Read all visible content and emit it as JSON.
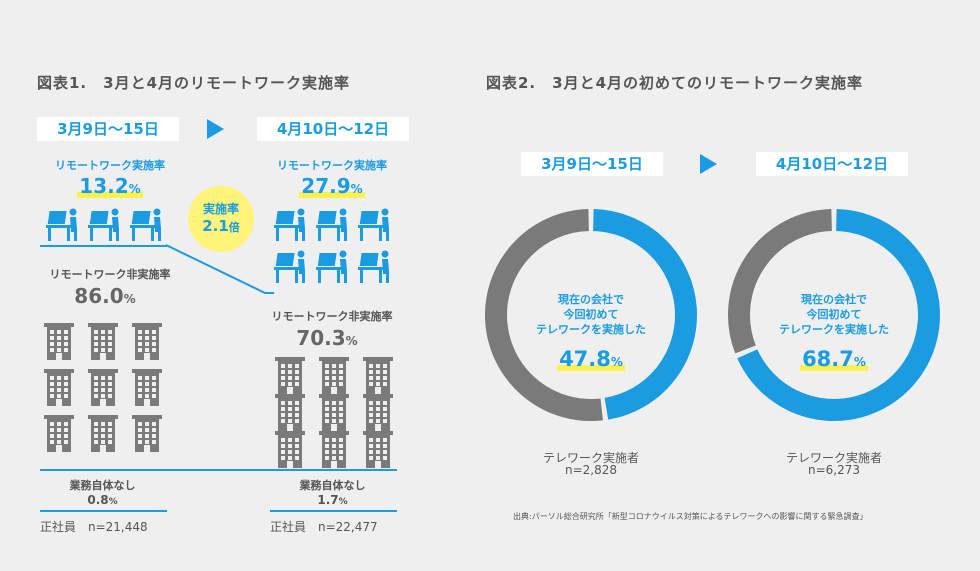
{
  "chart1": {
    "title": "図表1.　3月と4月のリモートワーク実施率",
    "left": {
      "date": "3月9日〜15日",
      "remote_label": "リモートワーク実施率",
      "remote_value": "13.2",
      "nonremote_label": "リモートワーク非実施率",
      "nonremote_value": "86.0",
      "none_label": "業務自体なし",
      "none_value": "0.8",
      "sample": "正社員　n=21,448"
    },
    "right": {
      "date": "4月10日〜12日",
      "remote_label": "リモートワーク実施率",
      "remote_value": "27.9",
      "nonremote_label": "リモートワーク非実施率",
      "nonremote_value": "70.3",
      "none_label": "業務自体なし",
      "none_value": "1.7",
      "sample": "正社員　n=22,477"
    },
    "ratio": {
      "line1": "実施率",
      "num": "2.1",
      "unit": "倍"
    },
    "pct_unit": "%",
    "icon_names": [
      "desk-worker-icon",
      "office-building-icon"
    ]
  },
  "chart2": {
    "title": "図表2.　3月と4月の初めてのリモートワーク実施率",
    "center_text": [
      "現在の会社で",
      "今回初めて",
      "テレワークを実施した"
    ],
    "left": {
      "date": "3月9日〜15日",
      "value": "47.8",
      "caption": "テレワーク実施者",
      "n": "n=2,828"
    },
    "right": {
      "date": "4月10日〜12日",
      "value": "68.7",
      "caption": "テレワーク実施者",
      "n": "n=6,273"
    },
    "pct_unit": "%"
  },
  "source": "出典:パーソル総合研究所「新型コロナウイルス対策によるテレワークへの影響に関する緊急調査」",
  "colors": {
    "blue": "#1a9be2",
    "gray": "#7a7a7a",
    "yellow": "#fff37a",
    "background": "#efefef"
  },
  "chart_data": [
    {
      "type": "bar",
      "categories": [
        "3月9日〜15日",
        "4月10日〜12日"
      ],
      "series": [
        {
          "name": "リモートワーク実施率",
          "values": [
            13.2,
            27.9
          ]
        },
        {
          "name": "リモートワーク非実施率",
          "values": [
            86.0,
            70.3
          ]
        },
        {
          "name": "業務自体なし",
          "values": [
            0.8,
            1.7
          ]
        }
      ]
    },
    {
      "type": "pie",
      "categories": [
        "3月9日〜15日",
        "4月10日〜12日"
      ],
      "values": [
        47.8,
        68.7
      ]
    }
  ]
}
